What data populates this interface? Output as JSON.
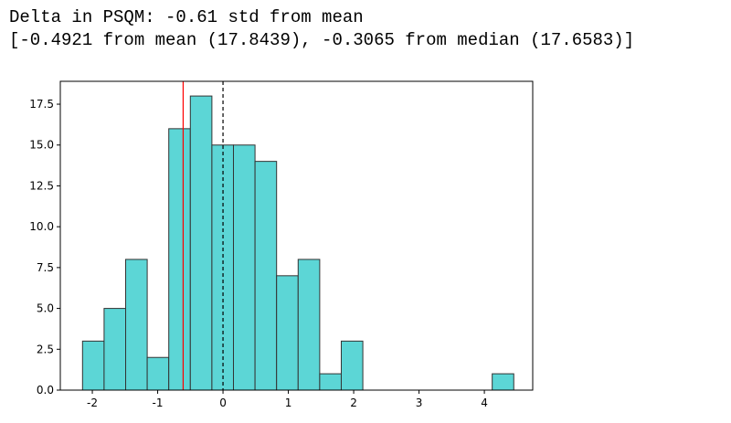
{
  "output_lines": [
    "Delta in PSQM: -0.61 std from mean",
    "[-0.4921 from mean (17.8439), -0.3065 from median (17.6583)]"
  ],
  "chart_data": {
    "type": "histogram",
    "bins": [
      -2.15,
      -1.82,
      -1.49,
      -1.16,
      -0.83,
      -0.5,
      -0.17,
      0.16,
      0.49,
      0.82,
      1.15,
      1.48,
      1.81,
      2.14,
      2.47,
      2.8,
      3.13,
      3.46,
      3.79,
      4.12,
      4.45
    ],
    "values": [
      3,
      5,
      8,
      2,
      16,
      18,
      15,
      15,
      14,
      7,
      8,
      1,
      3,
      0,
      0,
      0,
      0,
      0,
      0,
      1
    ],
    "color": "#5cd6d6",
    "edgecolor": "#333333",
    "vlines": [
      {
        "x": -0.61,
        "color": "#ff0000",
        "style": "solid"
      },
      {
        "x": 0,
        "color": "#000000",
        "style": "dashed"
      }
    ],
    "xlim": [
      -2.49,
      4.74
    ],
    "ylim": [
      0,
      18.9
    ],
    "xticks": [
      -2,
      -1,
      0,
      1,
      2,
      3,
      4
    ],
    "yticks": [
      {
        "value": 0,
        "label": "0.0"
      },
      {
        "value": 2.5,
        "label": "2.5"
      },
      {
        "value": 5,
        "label": "5.0"
      },
      {
        "value": 7.5,
        "label": "7.5"
      },
      {
        "value": 10,
        "label": "10.0"
      },
      {
        "value": 12.5,
        "label": "12.5"
      },
      {
        "value": 15,
        "label": "15.0"
      },
      {
        "value": 17.5,
        "label": "17.5"
      }
    ]
  }
}
